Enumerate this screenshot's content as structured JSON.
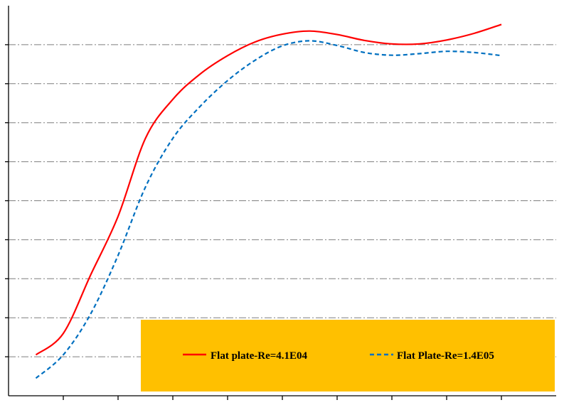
{
  "chart_data": {
    "type": "line",
    "title": "",
    "xlabel": "",
    "ylabel": "",
    "grid": true,
    "xlim": [
      0,
      10
    ],
    "ylim": [
      0,
      10
    ],
    "x_ticks": [
      1,
      2,
      3,
      4,
      5,
      6,
      7,
      8,
      9
    ],
    "y_gridlines": [
      1,
      2,
      3,
      4,
      5,
      6,
      7,
      8,
      9
    ],
    "legend": {
      "placement": "bottom-right",
      "background": "#ffc000"
    },
    "series": [
      {
        "name": "Flat plate-Re=4.1E04",
        "color": "#ff0000",
        "style": "solid",
        "x": [
          0.5,
          1.0,
          1.5,
          2.0,
          2.5,
          3.0,
          3.5,
          4.0,
          4.5,
          5.0,
          5.5,
          6.0,
          6.5,
          7.0,
          7.5,
          8.0,
          8.5,
          9.0
        ],
        "y": [
          1.05,
          1.6,
          3.1,
          4.6,
          6.6,
          7.6,
          8.25,
          8.72,
          9.07,
          9.27,
          9.35,
          9.26,
          9.11,
          9.02,
          9.02,
          9.12,
          9.29,
          9.52
        ]
      },
      {
        "name": "Flat Plate-Re=1.4E05",
        "color": "#0070c0",
        "style": "dashed",
        "x": [
          0.5,
          1.0,
          1.5,
          2.0,
          2.5,
          3.0,
          3.5,
          4.0,
          4.5,
          5.0,
          5.5,
          6.0,
          6.5,
          7.0,
          7.5,
          8.0,
          8.5,
          9.0
        ],
        "y": [
          0.45,
          1.05,
          2.1,
          3.6,
          5.35,
          6.6,
          7.42,
          8.08,
          8.6,
          8.97,
          9.1,
          8.98,
          8.8,
          8.73,
          8.77,
          8.83,
          8.8,
          8.72
        ]
      }
    ]
  }
}
